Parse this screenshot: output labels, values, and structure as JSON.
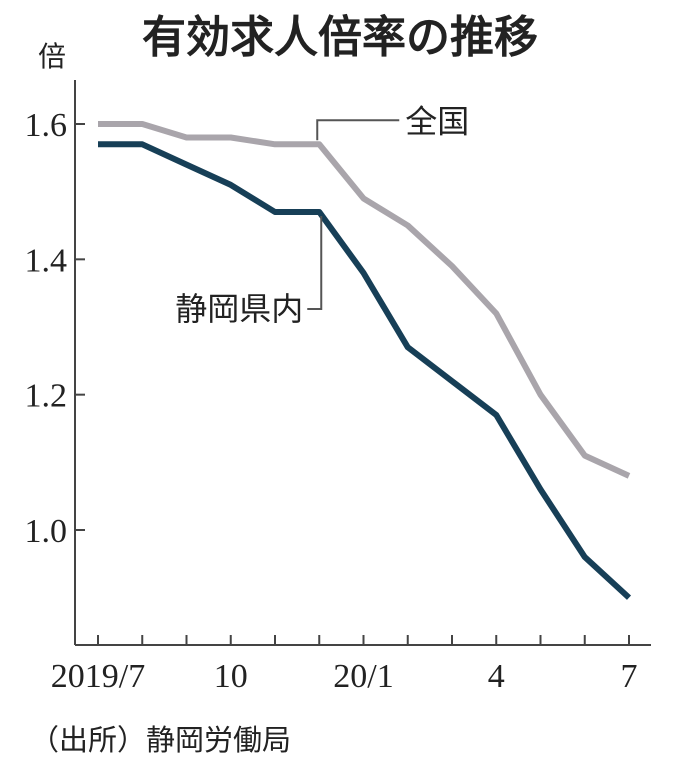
{
  "chart_data": {
    "type": "line",
    "title": "有効求人倍率の推移",
    "unit": "倍",
    "source": "（出所）静岡労働局",
    "x": [
      "2019/7",
      "2019/8",
      "2019/9",
      "2019/10",
      "2019/11",
      "2019/12",
      "2020/1",
      "2020/2",
      "2020/3",
      "2020/4",
      "2020/5",
      "2020/6",
      "2020/7"
    ],
    "xtick_labels": [
      {
        "index": 0,
        "label": "2019/7"
      },
      {
        "index": 3,
        "label": "10"
      },
      {
        "index": 6,
        "label": "20/1"
      },
      {
        "index": 9,
        "label": "4"
      },
      {
        "index": 12,
        "label": "7"
      }
    ],
    "ylim": [
      0.83,
      1.66
    ],
    "yticks": [
      {
        "value": 1.0,
        "label": "1.0"
      },
      {
        "value": 1.2,
        "label": "1.2"
      },
      {
        "value": 1.4,
        "label": "1.4"
      },
      {
        "value": 1.6,
        "label": "1.6"
      }
    ],
    "series": [
      {
        "name": "全国",
        "color": "#a9a5ab",
        "values": [
          1.6,
          1.6,
          1.58,
          1.58,
          1.57,
          1.57,
          1.49,
          1.45,
          1.39,
          1.32,
          1.2,
          1.11,
          1.08
        ]
      },
      {
        "name": "静岡県内",
        "color": "#173f57",
        "values": [
          1.57,
          1.57,
          1.54,
          1.51,
          1.47,
          1.47,
          1.38,
          1.27,
          1.22,
          1.17,
          1.06,
          0.96,
          0.9
        ]
      }
    ],
    "grid": false
  }
}
